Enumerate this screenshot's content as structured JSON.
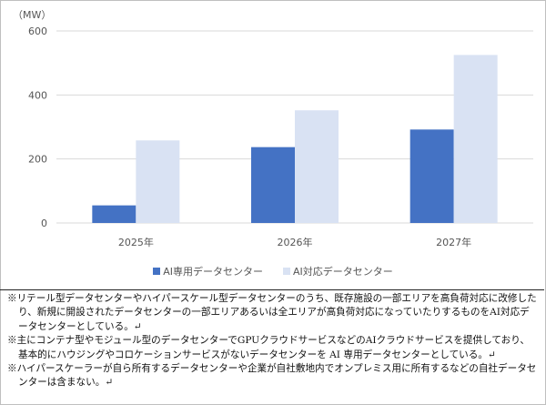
{
  "chart_data": {
    "type": "bar",
    "unit_label": "（MW）",
    "categories": [
      "2025年",
      "2026年",
      "2027年"
    ],
    "series": [
      {
        "name": "AI専用データセンター",
        "values": [
          55,
          237,
          292
        ],
        "color": "#4472C4"
      },
      {
        "name": "AI対応データセンター",
        "values": [
          258,
          352,
          525
        ],
        "color": "#D9E2F3"
      }
    ],
    "yticks": [
      "0",
      "200",
      "400",
      "600"
    ],
    "ylim": [
      0,
      600
    ],
    "grid": true,
    "legend_position": "bottom"
  },
  "notes": [
    "※リテール型データセンターやハイパースケール型データセンターのうち、既存施設の一部エリアを高負荷対応に改修したり、新規に開設されたデータセンターの一部エリアあるいは全エリアが高負荷対応になっていたりするものをAI対応データセンターとしている。↵",
    "※主にコンテナ型やモジュール型のデータセンターでGPUクラウドサービスなどのAIクラウドサービスを提供しており、基本的にハウジングやコロケーションサービスがないデータセンターを AI 専用データセンターとしている。↵",
    "※ハイパースケーラーが自ら所有するデータセンターや企業が自社敷地内でオンプレミス用に所有するなどの自社データセンターは含まない。↵"
  ]
}
